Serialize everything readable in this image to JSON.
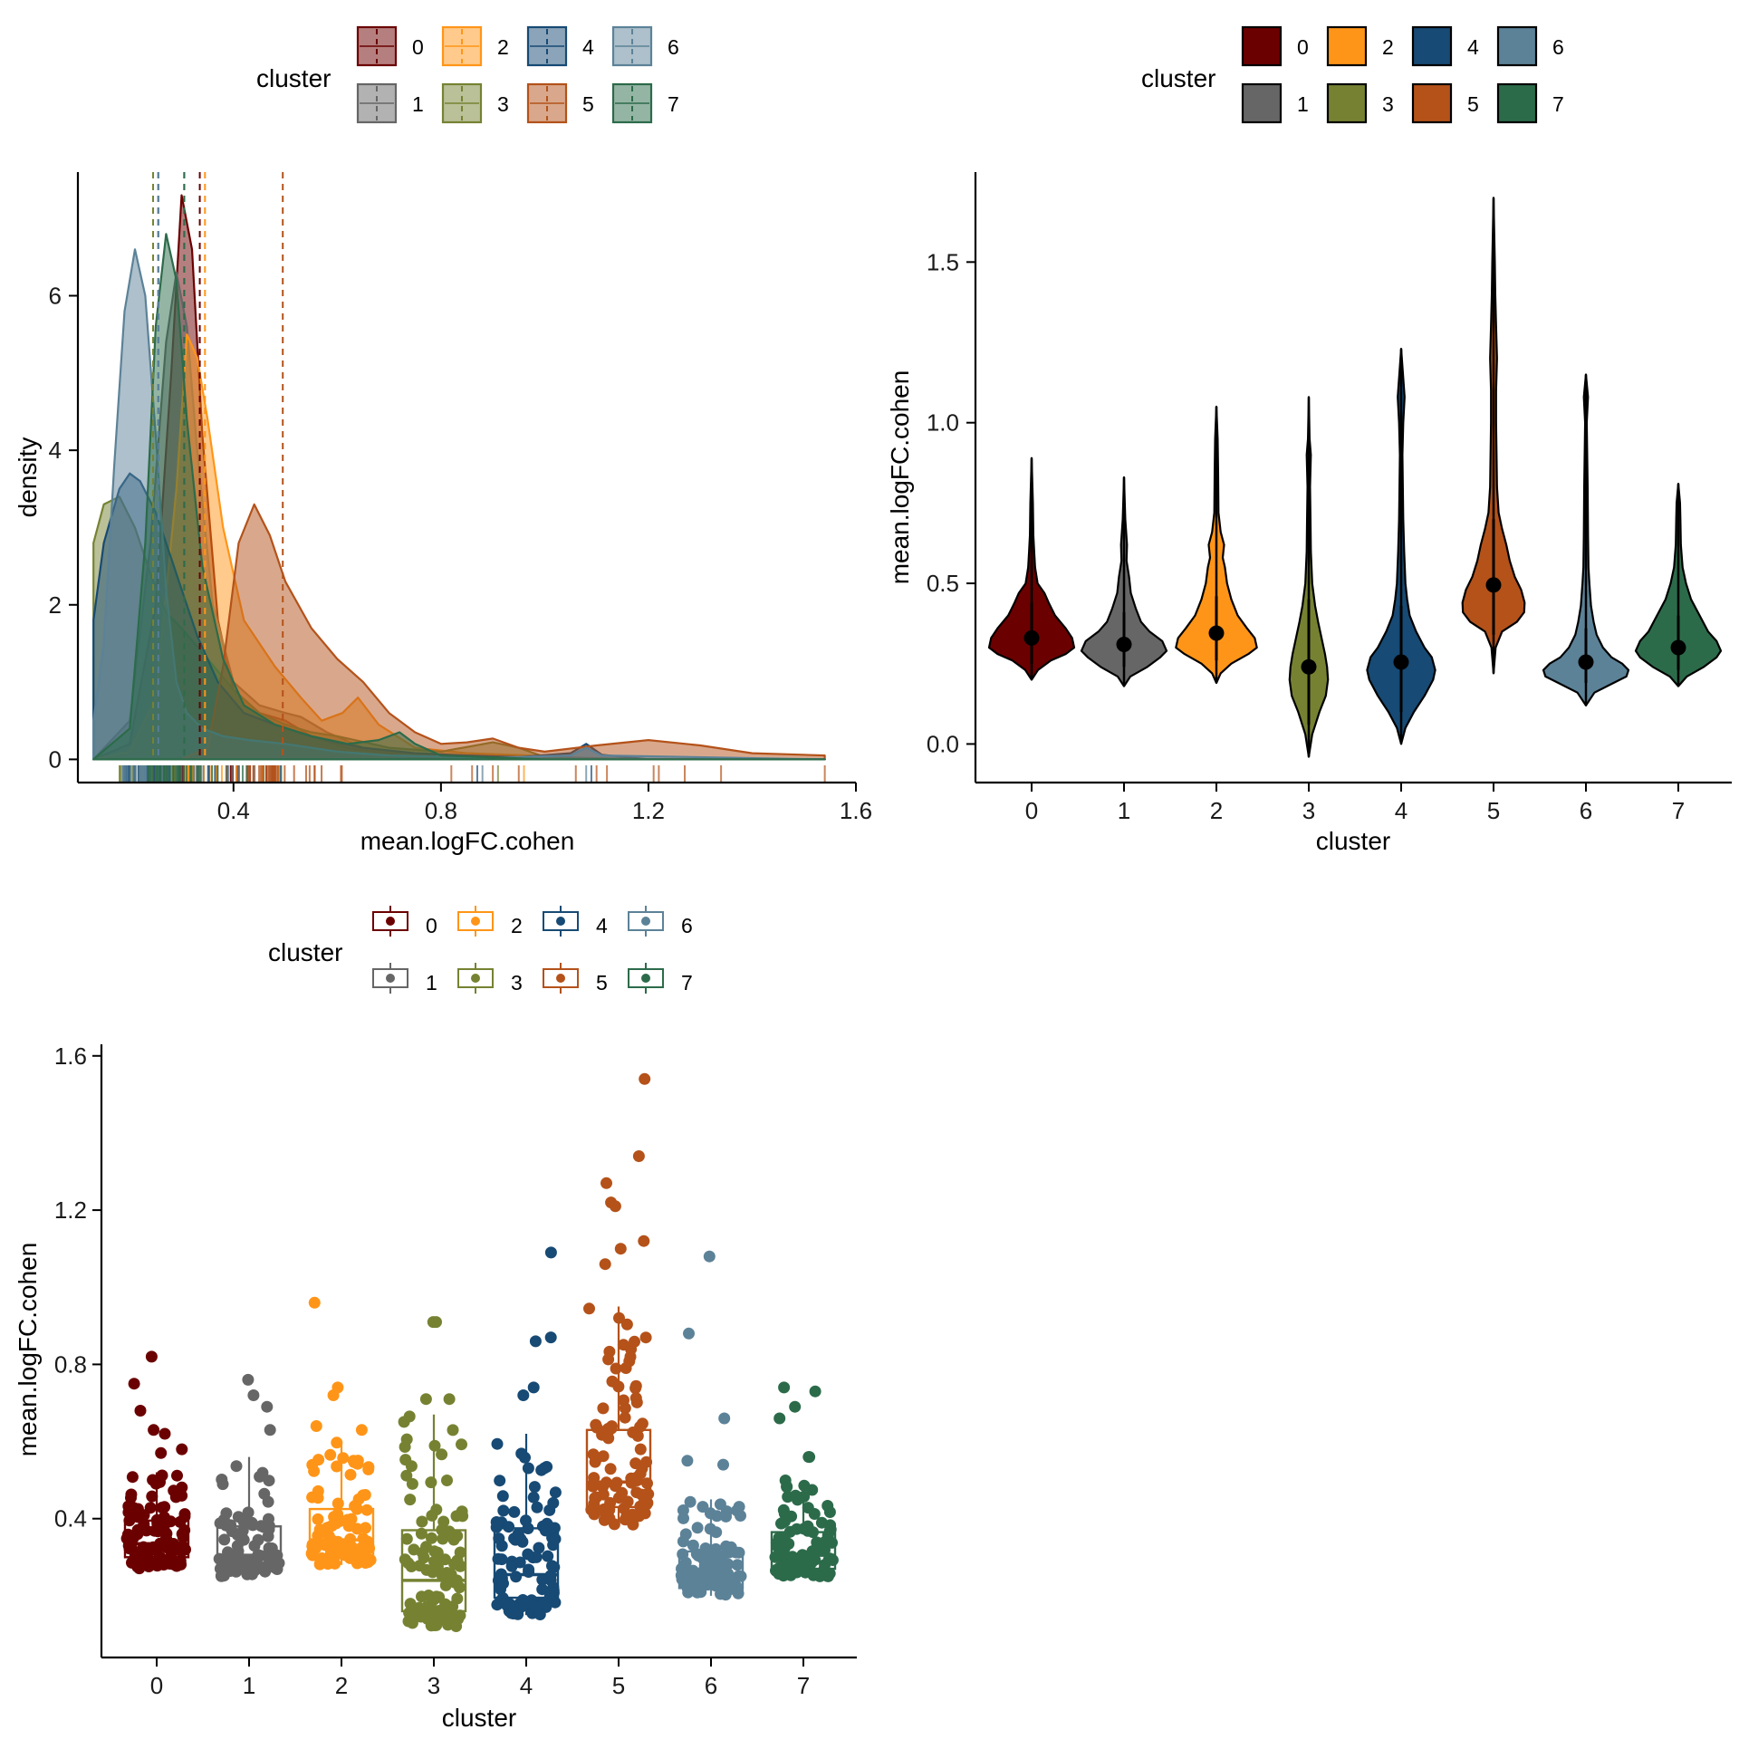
{
  "clusters": [
    "0",
    "1",
    "2",
    "3",
    "4",
    "5",
    "6",
    "7"
  ],
  "colors": [
    "#6b0000",
    "#666666",
    "#ff9518",
    "#768232",
    "#174a74",
    "#b4521a",
    "#5c8298",
    "#2c6b4a"
  ],
  "chart_data": [
    {
      "type": "area",
      "name": "density",
      "legend_title": "cluster",
      "xlabel": "mean.logFC.cohen",
      "ylabel": "density",
      "x_ticks": [
        "0.4",
        "0.8",
        "1.2",
        "1.6"
      ],
      "x_tick_values": [
        0.4,
        0.8,
        1.2,
        1.6
      ],
      "y_ticks": [
        "0",
        "2",
        "4",
        "6"
      ],
      "y_tick_values": [
        0,
        2,
        4,
        6
      ],
      "xlim": [
        0.1,
        1.6
      ],
      "ylim": [
        -0.3,
        7.6
      ],
      "means": [
        0.335,
        0.305,
        0.345,
        0.245,
        0.255,
        0.495,
        0.255,
        0.305
      ],
      "series": [
        {
          "name": "0",
          "x": [
            0.13,
            0.2,
            0.25,
            0.28,
            0.3,
            0.32,
            0.34,
            0.37,
            0.4,
            0.45,
            0.5,
            0.55,
            0.62,
            0.7,
            0.8,
            0.9,
            1.0,
            1.2,
            1.4,
            1.54
          ],
          "y": [
            0.0,
            0.2,
            2.0,
            5.0,
            7.3,
            6.6,
            4.2,
            1.8,
            0.9,
            0.6,
            0.5,
            0.3,
            0.15,
            0.08,
            0.04,
            0.02,
            0.01,
            0.0,
            0.0,
            0.0
          ]
        },
        {
          "name": "1",
          "x": [
            0.13,
            0.2,
            0.24,
            0.27,
            0.29,
            0.31,
            0.33,
            0.36,
            0.4,
            0.45,
            0.5,
            0.53,
            0.58,
            0.65,
            0.75,
            0.9,
            1.1,
            1.54
          ],
          "y": [
            0.0,
            0.5,
            2.8,
            5.4,
            6.3,
            5.6,
            4.0,
            2.0,
            1.0,
            0.7,
            0.6,
            0.55,
            0.35,
            0.15,
            0.05,
            0.02,
            0.0,
            0.0
          ]
        },
        {
          "name": "2",
          "x": [
            0.13,
            0.2,
            0.25,
            0.29,
            0.31,
            0.33,
            0.35,
            0.38,
            0.42,
            0.48,
            0.53,
            0.57,
            0.61,
            0.64,
            0.68,
            0.75,
            0.85,
            0.97,
            1.1,
            1.54
          ],
          "y": [
            0.0,
            0.1,
            0.8,
            3.5,
            5.5,
            5.2,
            4.4,
            3.0,
            1.8,
            1.2,
            0.8,
            0.5,
            0.6,
            0.8,
            0.45,
            0.15,
            0.08,
            0.05,
            0.0,
            0.0
          ]
        },
        {
          "name": "3",
          "x": [
            0.13,
            0.15,
            0.18,
            0.21,
            0.24,
            0.27,
            0.3,
            0.35,
            0.4,
            0.45,
            0.5,
            0.55,
            0.6,
            0.7,
            0.8,
            0.9,
            0.95,
            1.0,
            1.2,
            1.54
          ],
          "y": [
            2.8,
            3.3,
            3.4,
            3.0,
            2.4,
            1.9,
            1.7,
            1.3,
            0.9,
            0.6,
            0.45,
            0.35,
            0.3,
            0.15,
            0.1,
            0.22,
            0.15,
            0.03,
            0.0,
            0.0
          ]
        },
        {
          "name": "4",
          "x": [
            0.13,
            0.15,
            0.18,
            0.2,
            0.22,
            0.25,
            0.28,
            0.3,
            0.33,
            0.37,
            0.42,
            0.48,
            0.55,
            0.6,
            0.65,
            0.75,
            0.85,
            0.95,
            1.05,
            1.08,
            1.11,
            1.2,
            1.54
          ],
          "y": [
            1.8,
            2.8,
            3.5,
            3.7,
            3.6,
            3.2,
            2.6,
            2.2,
            1.6,
            1.0,
            0.6,
            0.45,
            0.3,
            0.22,
            0.15,
            0.08,
            0.05,
            0.03,
            0.08,
            0.2,
            0.06,
            0.0,
            0.0
          ]
        },
        {
          "name": "5",
          "x": [
            0.13,
            0.3,
            0.35,
            0.38,
            0.41,
            0.44,
            0.47,
            0.5,
            0.55,
            0.6,
            0.65,
            0.7,
            0.75,
            0.8,
            0.85,
            0.9,
            0.95,
            1.0,
            1.1,
            1.2,
            1.3,
            1.4,
            1.54
          ],
          "y": [
            0.0,
            0.0,
            0.15,
            1.2,
            2.8,
            3.3,
            2.9,
            2.3,
            1.7,
            1.3,
            1.0,
            0.6,
            0.35,
            0.2,
            0.22,
            0.27,
            0.15,
            0.1,
            0.18,
            0.25,
            0.18,
            0.08,
            0.05
          ]
        },
        {
          "name": "6",
          "x": [
            0.13,
            0.15,
            0.17,
            0.19,
            0.21,
            0.23,
            0.25,
            0.27,
            0.29,
            0.31,
            0.34,
            0.38,
            0.43,
            0.5,
            0.55,
            0.6,
            0.7,
            0.9,
            1.05,
            1.08,
            1.11,
            1.54
          ],
          "y": [
            0.5,
            1.5,
            3.8,
            5.8,
            6.6,
            6.0,
            4.2,
            2.2,
            1.0,
            0.6,
            0.4,
            0.3,
            0.25,
            0.2,
            0.15,
            0.1,
            0.05,
            0.02,
            0.05,
            0.15,
            0.05,
            0.0
          ]
        },
        {
          "name": "7",
          "x": [
            0.13,
            0.2,
            0.23,
            0.25,
            0.27,
            0.29,
            0.31,
            0.34,
            0.38,
            0.42,
            0.48,
            0.55,
            0.62,
            0.68,
            0.72,
            0.75,
            0.8,
            1.0,
            1.54
          ],
          "y": [
            0.0,
            0.4,
            2.8,
            5.6,
            6.8,
            6.2,
            4.4,
            2.5,
            1.3,
            0.7,
            0.45,
            0.3,
            0.2,
            0.25,
            0.35,
            0.2,
            0.05,
            0.0,
            0.0
          ]
        }
      ]
    },
    {
      "type": "violin",
      "name": "violin",
      "legend_title": "cluster",
      "xlabel": "cluster",
      "ylabel": "mean.logFC.cohen",
      "categories": [
        "0",
        "1",
        "2",
        "3",
        "4",
        "5",
        "6",
        "7"
      ],
      "y_ticks": [
        "0.0",
        "0.5",
        "1.0",
        "1.5"
      ],
      "y_tick_values": [
        0.0,
        0.5,
        1.0,
        1.5
      ],
      "ylim": [
        -0.12,
        1.78
      ],
      "medians": [
        0.33,
        0.31,
        0.345,
        0.24,
        0.255,
        0.495,
        0.255,
        0.3
      ],
      "whisker_low": [
        0.25,
        0.24,
        0.26,
        0.06,
        0.1,
        0.34,
        0.19,
        0.23
      ],
      "whisker_high": [
        0.44,
        0.41,
        0.46,
        0.45,
        0.43,
        0.7,
        0.36,
        0.4
      ],
      "ymin": [
        0.2,
        0.18,
        0.19,
        -0.04,
        0.0,
        0.22,
        0.12,
        0.18
      ],
      "ymax": [
        0.89,
        0.83,
        1.05,
        1.08,
        1.23,
        1.7,
        1.15,
        0.81
      ],
      "profiles": [
        [
          [
            0.2,
            0
          ],
          [
            0.23,
            0.15
          ],
          [
            0.26,
            0.45
          ],
          [
            0.28,
            0.8
          ],
          [
            0.3,
            1.0
          ],
          [
            0.33,
            0.95
          ],
          [
            0.36,
            0.8
          ],
          [
            0.4,
            0.55
          ],
          [
            0.44,
            0.4
          ],
          [
            0.47,
            0.3
          ],
          [
            0.5,
            0.14
          ],
          [
            0.55,
            0.08
          ],
          [
            0.6,
            0.06
          ],
          [
            0.65,
            0.04
          ],
          [
            0.75,
            0.03
          ],
          [
            0.89,
            0
          ]
        ],
        [
          [
            0.18,
            0
          ],
          [
            0.21,
            0.15
          ],
          [
            0.24,
            0.55
          ],
          [
            0.27,
            0.85
          ],
          [
            0.29,
            1.0
          ],
          [
            0.32,
            0.9
          ],
          [
            0.35,
            0.6
          ],
          [
            0.38,
            0.4
          ],
          [
            0.42,
            0.28
          ],
          [
            0.47,
            0.16
          ],
          [
            0.52,
            0.12
          ],
          [
            0.57,
            0.06
          ],
          [
            0.62,
            0.07
          ],
          [
            0.7,
            0.03
          ],
          [
            0.83,
            0
          ]
        ],
        [
          [
            0.19,
            0
          ],
          [
            0.22,
            0.1
          ],
          [
            0.25,
            0.35
          ],
          [
            0.28,
            0.75
          ],
          [
            0.3,
            0.95
          ],
          [
            0.33,
            0.9
          ],
          [
            0.36,
            0.72
          ],
          [
            0.4,
            0.5
          ],
          [
            0.45,
            0.35
          ],
          [
            0.5,
            0.25
          ],
          [
            0.55,
            0.2
          ],
          [
            0.58,
            0.15
          ],
          [
            0.62,
            0.18
          ],
          [
            0.66,
            0.1
          ],
          [
            0.72,
            0.05
          ],
          [
            0.85,
            0.04
          ],
          [
            0.95,
            0.03
          ],
          [
            1.05,
            0
          ]
        ],
        [
          [
            -0.04,
            0
          ],
          [
            0.03,
            0.08
          ],
          [
            0.1,
            0.25
          ],
          [
            0.15,
            0.4
          ],
          [
            0.2,
            0.45
          ],
          [
            0.24,
            0.43
          ],
          [
            0.28,
            0.38
          ],
          [
            0.33,
            0.3
          ],
          [
            0.38,
            0.22
          ],
          [
            0.43,
            0.15
          ],
          [
            0.5,
            0.08
          ],
          [
            0.6,
            0.05
          ],
          [
            0.7,
            0.04
          ],
          [
            0.8,
            0.03
          ],
          [
            0.9,
            0.05
          ],
          [
            0.95,
            0.02
          ],
          [
            1.08,
            0
          ]
        ],
        [
          [
            0.0,
            0
          ],
          [
            0.05,
            0.1
          ],
          [
            0.1,
            0.3
          ],
          [
            0.15,
            0.55
          ],
          [
            0.2,
            0.75
          ],
          [
            0.23,
            0.8
          ],
          [
            0.27,
            0.72
          ],
          [
            0.3,
            0.55
          ],
          [
            0.35,
            0.35
          ],
          [
            0.4,
            0.2
          ],
          [
            0.45,
            0.14
          ],
          [
            0.5,
            0.1
          ],
          [
            0.6,
            0.07
          ],
          [
            0.7,
            0.05
          ],
          [
            0.9,
            0.03
          ],
          [
            1.0,
            0.05
          ],
          [
            1.08,
            0.08
          ],
          [
            1.23,
            0
          ]
        ],
        [
          [
            0.22,
            0
          ],
          [
            0.3,
            0.05
          ],
          [
            0.35,
            0.2
          ],
          [
            0.38,
            0.55
          ],
          [
            0.41,
            0.72
          ],
          [
            0.44,
            0.73
          ],
          [
            0.48,
            0.65
          ],
          [
            0.52,
            0.5
          ],
          [
            0.57,
            0.38
          ],
          [
            0.62,
            0.3
          ],
          [
            0.67,
            0.2
          ],
          [
            0.72,
            0.12
          ],
          [
            0.8,
            0.08
          ],
          [
            0.9,
            0.07
          ],
          [
            1.0,
            0.06
          ],
          [
            1.1,
            0.06
          ],
          [
            1.2,
            0.08
          ],
          [
            1.3,
            0.06
          ],
          [
            1.4,
            0.04
          ],
          [
            1.5,
            0.03
          ],
          [
            1.7,
            0
          ]
        ],
        [
          [
            0.12,
            0
          ],
          [
            0.16,
            0.2
          ],
          [
            0.19,
            0.65
          ],
          [
            0.21,
            0.95
          ],
          [
            0.23,
            1.0
          ],
          [
            0.25,
            0.85
          ],
          [
            0.27,
            0.6
          ],
          [
            0.3,
            0.4
          ],
          [
            0.34,
            0.25
          ],
          [
            0.38,
            0.18
          ],
          [
            0.43,
            0.12
          ],
          [
            0.5,
            0.08
          ],
          [
            0.55,
            0.06
          ],
          [
            0.65,
            0.05
          ],
          [
            0.8,
            0.04
          ],
          [
            0.9,
            0.03
          ],
          [
            1.0,
            0.02
          ],
          [
            1.08,
            0.05
          ],
          [
            1.15,
            0
          ]
        ],
        [
          [
            0.18,
            0
          ],
          [
            0.21,
            0.2
          ],
          [
            0.24,
            0.6
          ],
          [
            0.27,
            0.9
          ],
          [
            0.29,
            1.0
          ],
          [
            0.32,
            0.9
          ],
          [
            0.35,
            0.7
          ],
          [
            0.4,
            0.5
          ],
          [
            0.45,
            0.3
          ],
          [
            0.5,
            0.18
          ],
          [
            0.55,
            0.1
          ],
          [
            0.62,
            0.06
          ],
          [
            0.7,
            0.05
          ],
          [
            0.75,
            0.04
          ],
          [
            0.81,
            0
          ]
        ]
      ]
    },
    {
      "type": "box",
      "name": "boxplot",
      "legend_title": "cluster",
      "xlabel": "cluster",
      "ylabel": "mean.logFC.cohen",
      "categories": [
        "0",
        "1",
        "2",
        "3",
        "4",
        "5",
        "6",
        "7"
      ],
      "y_ticks": [
        "0.4",
        "0.8",
        "1.2",
        "1.6"
      ],
      "y_tick_values": [
        0.4,
        0.8,
        1.2,
        1.6
      ],
      "ylim": [
        0.04,
        1.63
      ],
      "q1": [
        0.3,
        0.28,
        0.305,
        0.16,
        0.195,
        0.43,
        0.22,
        0.27
      ],
      "median": [
        0.335,
        0.305,
        0.345,
        0.24,
        0.255,
        0.495,
        0.255,
        0.305
      ],
      "q3": [
        0.395,
        0.38,
        0.425,
        0.37,
        0.375,
        0.63,
        0.315,
        0.365
      ],
      "whisker_low": [
        0.27,
        0.25,
        0.28,
        0.12,
        0.15,
        0.38,
        0.2,
        0.25
      ],
      "whisker_high": [
        0.52,
        0.56,
        0.6,
        0.67,
        0.62,
        0.95,
        0.45,
        0.5
      ],
      "outliers": [
        [
          0.75,
          0.82,
          0.68,
          0.63,
          0.62,
          0.58,
          0.57
        ],
        [
          0.76,
          0.72,
          0.69,
          0.63
        ],
        [
          0.96,
          0.74,
          0.72,
          0.64,
          0.63
        ],
        [
          0.91,
          0.91,
          0.71,
          0.71
        ],
        [
          1.09,
          0.87,
          0.86,
          0.74,
          0.72
        ],
        [
          1.54,
          1.34,
          1.27,
          1.22,
          1.21,
          1.12,
          1.1,
          1.06
        ],
        [
          1.08,
          0.88,
          0.66,
          0.55,
          0.54
        ],
        [
          0.74,
          0.73,
          0.69,
          0.66,
          0.56,
          0.56
        ]
      ],
      "point_counts": [
        95,
        90,
        95,
        100,
        100,
        90,
        100,
        95
      ]
    }
  ]
}
